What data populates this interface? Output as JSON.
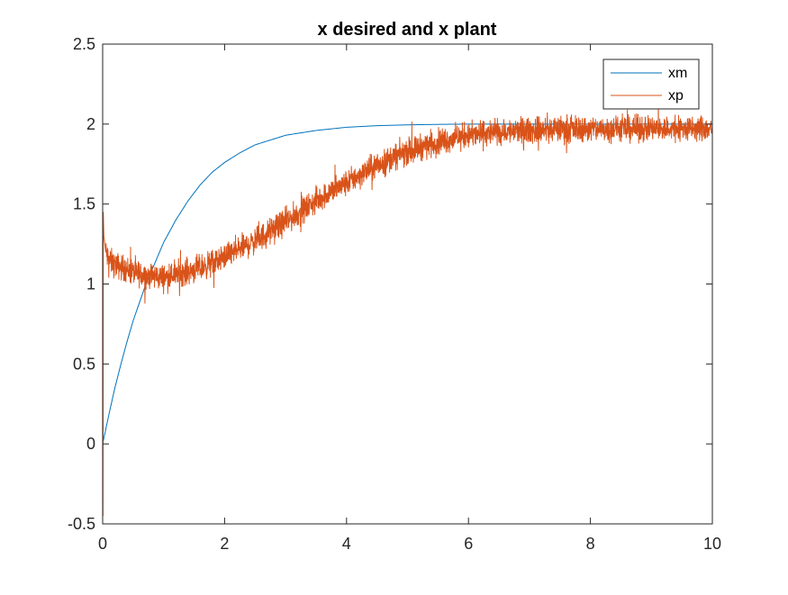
{
  "chart_data": {
    "type": "line",
    "title": "x desired and x plant",
    "xlabel": "",
    "ylabel": "",
    "xlim": [
      0,
      10
    ],
    "ylim": [
      -0.5,
      2.5
    ],
    "xticks": [
      0,
      2,
      4,
      6,
      8,
      10
    ],
    "yticks": [
      -0.5,
      0,
      0.5,
      1,
      1.5,
      2,
      2.5
    ],
    "xtick_labels": [
      "0",
      "2",
      "4",
      "6",
      "8",
      "10"
    ],
    "ytick_labels": [
      "-0.5",
      "0",
      "0.5",
      "1",
      "1.5",
      "2",
      "2.5"
    ],
    "grid": false,
    "legend_position": "top-right",
    "series": [
      {
        "name": "xm",
        "color": "#0072BD",
        "x": [
          0,
          0.1,
          0.2,
          0.3,
          0.4,
          0.5,
          0.6,
          0.7,
          0.8,
          0.9,
          1.0,
          1.2,
          1.4,
          1.6,
          1.8,
          2.0,
          2.25,
          2.5,
          2.75,
          3.0,
          3.5,
          4.0,
          4.5,
          5.0,
          5.5,
          6.0,
          7.0,
          8.0,
          9.0,
          10.0
        ],
        "y": [
          0,
          0.18,
          0.35,
          0.5,
          0.64,
          0.77,
          0.88,
          0.99,
          1.08,
          1.17,
          1.26,
          1.4,
          1.52,
          1.62,
          1.7,
          1.76,
          1.82,
          1.87,
          1.9,
          1.93,
          1.96,
          1.98,
          1.99,
          1.995,
          1.998,
          2.0,
          2.0,
          2.0,
          2.0,
          2.0
        ]
      },
      {
        "name": "xp",
        "color": "#D95319",
        "noise_band_approx": 0.12,
        "x": [
          0,
          0.005,
          0.01,
          0.02,
          0.05,
          0.1,
          0.2,
          0.4,
          0.6,
          0.8,
          1.0,
          1.2,
          1.4,
          1.6,
          1.8,
          2.0,
          2.25,
          2.5,
          2.75,
          3.0,
          3.25,
          3.5,
          3.75,
          4.0,
          4.25,
          4.5,
          4.75,
          5.0,
          5.25,
          5.5,
          5.75,
          6.0,
          6.25,
          6.5,
          7.0,
          7.5,
          8.0,
          8.5,
          9.0,
          9.5,
          10.0
        ],
        "y": [
          0.9,
          -0.45,
          1.45,
          1.3,
          1.2,
          1.15,
          1.12,
          1.09,
          1.06,
          1.05,
          1.04,
          1.06,
          1.08,
          1.1,
          1.13,
          1.17,
          1.22,
          1.27,
          1.33,
          1.39,
          1.45,
          1.52,
          1.58,
          1.63,
          1.69,
          1.74,
          1.79,
          1.83,
          1.86,
          1.89,
          1.91,
          1.93,
          1.94,
          1.95,
          1.96,
          1.97,
          1.97,
          1.97,
          1.97,
          1.97,
          1.97
        ]
      }
    ]
  }
}
